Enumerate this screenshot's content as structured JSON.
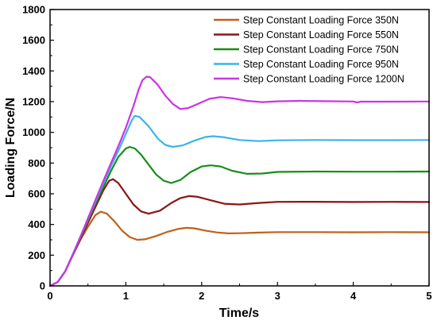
{
  "chart_data": {
    "type": "line",
    "xlabel": "Time/s",
    "ylabel": "Loading Force/N",
    "xlim": [
      0,
      5
    ],
    "ylim": [
      0,
      1800
    ],
    "xticks": [
      "0",
      "1",
      "2",
      "3",
      "4",
      "5"
    ],
    "yticks": [
      "0",
      "200",
      "400",
      "600",
      "800",
      "1000",
      "1200",
      "1400",
      "1600",
      "1800"
    ],
    "legend_position": "top-right",
    "grid": false,
    "series": [
      {
        "name": "Step Constant Loading Force 350N",
        "color": "#c0601a",
        "points": [
          [
            0,
            0
          ],
          [
            0.1,
            25
          ],
          [
            0.2,
            95
          ],
          [
            0.3,
            200
          ],
          [
            0.4,
            300
          ],
          [
            0.5,
            385
          ],
          [
            0.6,
            462
          ],
          [
            0.67,
            483
          ],
          [
            0.75,
            470
          ],
          [
            0.85,
            420
          ],
          [
            0.95,
            360
          ],
          [
            1.05,
            318
          ],
          [
            1.15,
            300
          ],
          [
            1.25,
            303
          ],
          [
            1.4,
            325
          ],
          [
            1.55,
            352
          ],
          [
            1.7,
            372
          ],
          [
            1.8,
            378
          ],
          [
            1.9,
            375
          ],
          [
            2.05,
            360
          ],
          [
            2.2,
            348
          ],
          [
            2.35,
            342
          ],
          [
            2.5,
            343
          ],
          [
            2.75,
            347
          ],
          [
            3.0,
            350
          ],
          [
            3.5,
            350
          ],
          [
            4.0,
            349
          ],
          [
            4.5,
            350
          ],
          [
            5.0,
            349
          ]
        ]
      },
      {
        "name": "Step Constant Loading Force 550N",
        "color": "#8b1414",
        "points": [
          [
            0,
            0
          ],
          [
            0.1,
            25
          ],
          [
            0.2,
            95
          ],
          [
            0.3,
            200
          ],
          [
            0.4,
            305
          ],
          [
            0.5,
            410
          ],
          [
            0.6,
            515
          ],
          [
            0.7,
            620
          ],
          [
            0.78,
            685
          ],
          [
            0.83,
            695
          ],
          [
            0.9,
            670
          ],
          [
            1.0,
            600
          ],
          [
            1.1,
            530
          ],
          [
            1.2,
            485
          ],
          [
            1.3,
            470
          ],
          [
            1.45,
            490
          ],
          [
            1.6,
            540
          ],
          [
            1.72,
            572
          ],
          [
            1.83,
            585
          ],
          [
            1.95,
            580
          ],
          [
            2.1,
            560
          ],
          [
            2.3,
            535
          ],
          [
            2.5,
            530
          ],
          [
            2.75,
            540
          ],
          [
            3.0,
            547
          ],
          [
            3.5,
            548
          ],
          [
            4.0,
            546
          ],
          [
            4.5,
            547
          ],
          [
            5.0,
            546
          ]
        ]
      },
      {
        "name": "Step Constant Loading Force 750N",
        "color": "#1a8c1a",
        "points": [
          [
            0,
            0
          ],
          [
            0.1,
            25
          ],
          [
            0.2,
            95
          ],
          [
            0.3,
            205
          ],
          [
            0.4,
            315
          ],
          [
            0.5,
            425
          ],
          [
            0.6,
            535
          ],
          [
            0.7,
            640
          ],
          [
            0.8,
            745
          ],
          [
            0.9,
            840
          ],
          [
            1.0,
            895
          ],
          [
            1.05,
            905
          ],
          [
            1.12,
            895
          ],
          [
            1.2,
            855
          ],
          [
            1.3,
            790
          ],
          [
            1.4,
            725
          ],
          [
            1.5,
            685
          ],
          [
            1.6,
            670
          ],
          [
            1.72,
            690
          ],
          [
            1.85,
            740
          ],
          [
            2.0,
            778
          ],
          [
            2.12,
            785
          ],
          [
            2.25,
            778
          ],
          [
            2.4,
            750
          ],
          [
            2.6,
            730
          ],
          [
            2.8,
            732
          ],
          [
            3.0,
            742
          ],
          [
            3.5,
            745
          ],
          [
            4.0,
            744
          ],
          [
            4.5,
            744
          ],
          [
            5.0,
            745
          ]
        ]
      },
      {
        "name": "Step Constant Loading Force 950N",
        "color": "#3cb4e8",
        "points": [
          [
            0,
            0
          ],
          [
            0.1,
            25
          ],
          [
            0.2,
            95
          ],
          [
            0.3,
            205
          ],
          [
            0.4,
            320
          ],
          [
            0.5,
            435
          ],
          [
            0.6,
            550
          ],
          [
            0.7,
            665
          ],
          [
            0.8,
            775
          ],
          [
            0.9,
            880
          ],
          [
            1.0,
            990
          ],
          [
            1.08,
            1080
          ],
          [
            1.12,
            1108
          ],
          [
            1.18,
            1100
          ],
          [
            1.3,
            1040
          ],
          [
            1.42,
            960
          ],
          [
            1.52,
            918
          ],
          [
            1.62,
            905
          ],
          [
            1.75,
            915
          ],
          [
            1.9,
            945
          ],
          [
            2.05,
            970
          ],
          [
            2.15,
            975
          ],
          [
            2.3,
            968
          ],
          [
            2.5,
            950
          ],
          [
            2.75,
            943
          ],
          [
            3.0,
            948
          ],
          [
            3.5,
            950
          ],
          [
            4.0,
            949
          ],
          [
            4.5,
            949
          ],
          [
            5.0,
            950
          ]
        ]
      },
      {
        "name": "Step Constant Loading Force 1200N",
        "color": "#cc33e6",
        "points": [
          [
            0,
            0
          ],
          [
            0.1,
            25
          ],
          [
            0.2,
            95
          ],
          [
            0.3,
            205
          ],
          [
            0.4,
            320
          ],
          [
            0.5,
            440
          ],
          [
            0.6,
            560
          ],
          [
            0.7,
            680
          ],
          [
            0.8,
            795
          ],
          [
            0.9,
            910
          ],
          [
            1.0,
            1030
          ],
          [
            1.1,
            1170
          ],
          [
            1.17,
            1280
          ],
          [
            1.22,
            1340
          ],
          [
            1.27,
            1363
          ],
          [
            1.32,
            1360
          ],
          [
            1.42,
            1310
          ],
          [
            1.52,
            1240
          ],
          [
            1.62,
            1185
          ],
          [
            1.72,
            1152
          ],
          [
            1.82,
            1158
          ],
          [
            1.95,
            1185
          ],
          [
            2.1,
            1218
          ],
          [
            2.25,
            1230
          ],
          [
            2.4,
            1222
          ],
          [
            2.6,
            1205
          ],
          [
            2.8,
            1197
          ],
          [
            3.0,
            1202
          ],
          [
            3.3,
            1205
          ],
          [
            3.6,
            1203
          ],
          [
            4.0,
            1201
          ],
          [
            4.05,
            1195
          ],
          [
            4.1,
            1200
          ],
          [
            4.5,
            1200
          ],
          [
            5.0,
            1201
          ]
        ]
      }
    ]
  }
}
